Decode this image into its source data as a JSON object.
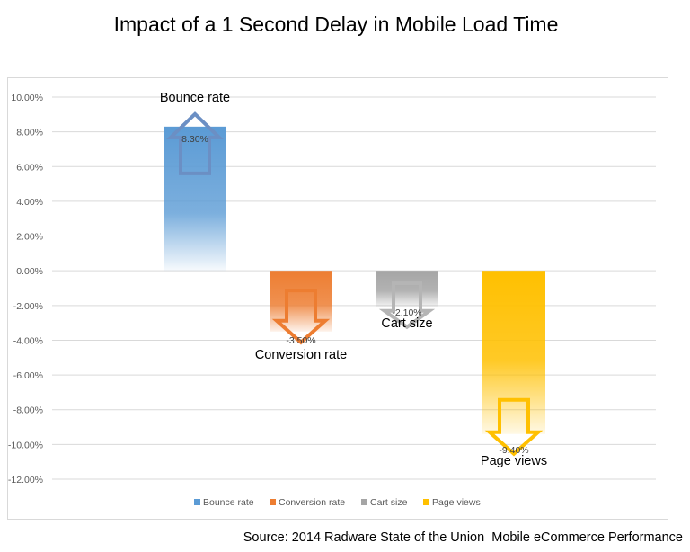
{
  "chart_data": {
    "type": "bar",
    "title": "Impact of a 1 Second Delay in Mobile Load Time",
    "categories": [
      "Bounce rate",
      "Conversion rate",
      "Cart size",
      "Page views"
    ],
    "series": [
      {
        "name": "Bounce rate",
        "value": 8.3,
        "label": "8.30%",
        "color": "#5b9bd5",
        "direction": "up"
      },
      {
        "name": "Conversion rate",
        "value": -3.5,
        "label": "-3.50%",
        "color": "#ed7d31",
        "direction": "down"
      },
      {
        "name": "Cart size",
        "value": -2.1,
        "label": "-2.10%",
        "color": "#a5a5a5",
        "direction": "down"
      },
      {
        "name": "Page views",
        "value": -9.4,
        "label": "-9.40%",
        "color": "#ffc000",
        "direction": "down"
      }
    ],
    "ylim": [
      -12,
      10
    ],
    "yticks": [
      10,
      8,
      6,
      4,
      2,
      0,
      -2,
      -4,
      -6,
      -8,
      -10,
      -12
    ],
    "ytick_labels": [
      "10.00%",
      "8.00%",
      "6.00%",
      "4.00%",
      "2.00%",
      "0.00%",
      "-2.00%",
      "-4.00%",
      "-6.00%",
      "-8.00%",
      "-10.00%",
      "-12.00%"
    ],
    "grid": true,
    "legend_position": "bottom",
    "source": "Source: 2014 Radware State of the Union  Mobile eCommerce Performance"
  }
}
